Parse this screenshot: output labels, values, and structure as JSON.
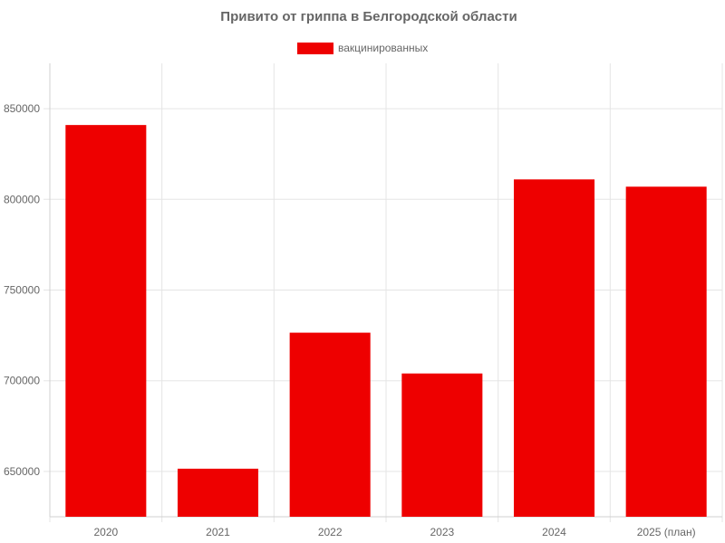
{
  "chart_data": {
    "type": "bar",
    "title": "Привито от гриппа в Белгородской области",
    "xlabel": "",
    "ylabel": "",
    "categories": [
      "2020",
      "2021",
      "2022",
      "2023",
      "2024",
      "2025 (план)"
    ],
    "series": [
      {
        "name": "вакцинированных",
        "color": "#ee0000",
        "values": [
          841000,
          651500,
          726500,
          704000,
          811000,
          807000
        ]
      }
    ],
    "ylim": [
      625000,
      875000
    ],
    "yticks": [
      650000,
      700000,
      750000,
      800000,
      850000
    ],
    "grid": true,
    "legend_position": "top-center"
  }
}
